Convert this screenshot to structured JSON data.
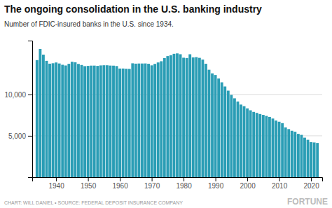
{
  "chart_data": {
    "type": "bar",
    "title": "The ongoing consolidation in the U.S. banking industry",
    "subtitle": "Number of FDIC-insured banks in the U.S. since 1934.",
    "annotations": [
      "CHART: WILL DANIEL  •  SOURCE: FEDERAL DEPOSIT INSURANCE COMPANY",
      "FORTUNE"
    ],
    "color": "#2a9db5",
    "x": [
      1934,
      1935,
      1936,
      1937,
      1938,
      1939,
      1940,
      1941,
      1942,
      1943,
      1944,
      1945,
      1946,
      1947,
      1948,
      1949,
      1950,
      1951,
      1952,
      1953,
      1954,
      1955,
      1956,
      1957,
      1958,
      1959,
      1960,
      1961,
      1962,
      1963,
      1964,
      1965,
      1966,
      1967,
      1968,
      1969,
      1970,
      1971,
      1972,
      1973,
      1974,
      1975,
      1976,
      1977,
      1978,
      1979,
      1980,
      1981,
      1982,
      1983,
      1984,
      1985,
      1986,
      1987,
      1988,
      1989,
      1990,
      1991,
      1992,
      1993,
      1994,
      1995,
      1996,
      1997,
      1998,
      1999,
      2000,
      2001,
      2002,
      2003,
      2004,
      2005,
      2006,
      2007,
      2008,
      2009,
      2010,
      2011,
      2012,
      2013,
      2014,
      2015,
      2016,
      2017,
      2018,
      2019,
      2020,
      2021,
      2022
    ],
    "values": [
      14146,
      15488,
      14807,
      14057,
      13713,
      13765,
      13859,
      13737,
      13581,
      13495,
      13697,
      13948,
      13882,
      13685,
      13556,
      13415,
      13446,
      13480,
      13481,
      13445,
      13503,
      13523,
      13522,
      13484,
      13475,
      13428,
      13126,
      13129,
      13101,
      13086,
      13758,
      13716,
      13734,
      13734,
      13741,
      13701,
      13511,
      13690,
      13861,
      14008,
      14394,
      14629,
      14737,
      14906,
      14956,
      14854,
      14434,
      14397,
      14851,
      14469,
      14506,
      14417,
      14210,
      13704,
      12979,
      12544,
      12343,
      11921,
      11462,
      10958,
      10452,
      9941,
      9528,
      9143,
      8773,
      8580,
      8315,
      8080,
      7887,
      7769,
      7630,
      7526,
      7402,
      7283,
      7086,
      6840,
      6702,
      6530,
      6012,
      5809,
      5607,
      5491,
      5235,
      5112,
      4774,
      4519,
      4236,
      4194,
      4135
    ],
    "xlim": [
      1932.5,
      2023.5
    ],
    "xticks": [
      1940,
      1950,
      1960,
      1970,
      1980,
      1990,
      2000,
      2010,
      2020
    ],
    "ylim": [
      0,
      16500
    ],
    "yticks": [
      {
        "value": 5000,
        "label": "5,000"
      },
      {
        "value": 10000,
        "label": "10,000"
      }
    ],
    "grid": true
  }
}
